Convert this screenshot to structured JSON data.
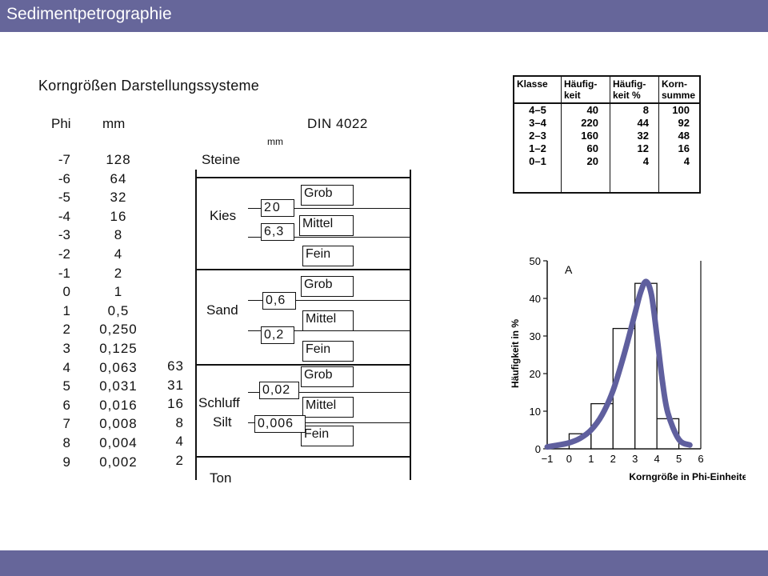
{
  "header": {
    "title": "Sedimentpetrographie"
  },
  "left": {
    "heading": "Korngrößen Darstellungssysteme",
    "col_phi_header": "Phi",
    "col_mm_header": "mm",
    "phi": [
      "-7",
      "-6",
      "-5",
      "-4",
      "-3",
      "-2",
      "-1",
      "0",
      "1",
      "2",
      "3",
      "4",
      "5",
      "6",
      "7",
      "8",
      "9"
    ],
    "mm": [
      "128",
      "64",
      "32",
      "16",
      "8",
      "4",
      "2",
      "1",
      "0,5",
      "0,250",
      "0,125",
      "0,063",
      "0,031",
      "0,016",
      "0,008",
      "0,004",
      "0,002"
    ],
    "mm_micron": [
      "63",
      "31",
      "16",
      "8",
      "4",
      "2"
    ]
  },
  "din": {
    "title": "DIN 4022",
    "unit": "mm",
    "classes": {
      "steine": "Steine",
      "kies": "Kies",
      "sand": "Sand",
      "schluff": "Schluff",
      "silt": "Silt",
      "ton": "Ton"
    },
    "sub": {
      "grob": "Grob",
      "mittel": "Mittel",
      "fein": "Fein"
    },
    "limits": [
      "20",
      "6,3",
      "0,6",
      "0,2",
      "0,02",
      "0,006"
    ]
  },
  "table": {
    "headers": [
      "Klasse",
      "Häufig-\nkeit",
      "Häufig-\nkeit %",
      "Korn-\nsumme"
    ],
    "rows": [
      [
        "4–5",
        "40",
        "8",
        "100"
      ],
      [
        "3–4",
        "220",
        "44",
        "92"
      ],
      [
        "2–3",
        "160",
        "32",
        "48"
      ],
      [
        "1–2",
        "60",
        "12",
        "16"
      ],
      [
        "0–1",
        "20",
        "4",
        "4"
      ]
    ]
  },
  "chart_data": {
    "type": "bar",
    "title": "A",
    "xlabel": "Korngröße in Phi-Einheiten",
    "ylabel": "Häufigkeit in %",
    "xticks": [
      "−1",
      "0",
      "1",
      "2",
      "3",
      "4",
      "5",
      "6"
    ],
    "yticks": [
      "0",
      "10",
      "20",
      "30",
      "40",
      "50"
    ],
    "xlim": [
      -1,
      6
    ],
    "ylim": [
      0,
      50
    ],
    "bins": [
      [
        0,
        1
      ],
      [
        1,
        2
      ],
      [
        2,
        3
      ],
      [
        3,
        4
      ],
      [
        4,
        5
      ]
    ],
    "values": [
      4,
      12,
      32,
      44,
      8
    ],
    "curve": {
      "x": [
        -1,
        -0.5,
        0,
        0.5,
        1,
        1.5,
        2,
        2.5,
        3,
        3.25,
        3.5,
        3.75,
        4,
        4.25,
        4.5,
        5,
        5.5
      ],
      "y": [
        0.5,
        1,
        1.6,
        2.8,
        5,
        9,
        15.5,
        25,
        36,
        41.5,
        44.5,
        41,
        30,
        18,
        9.5,
        2.5,
        1
      ]
    },
    "colors": {
      "curve": "#5f5f9e",
      "bars": "#111111"
    },
    "grid": false
  }
}
